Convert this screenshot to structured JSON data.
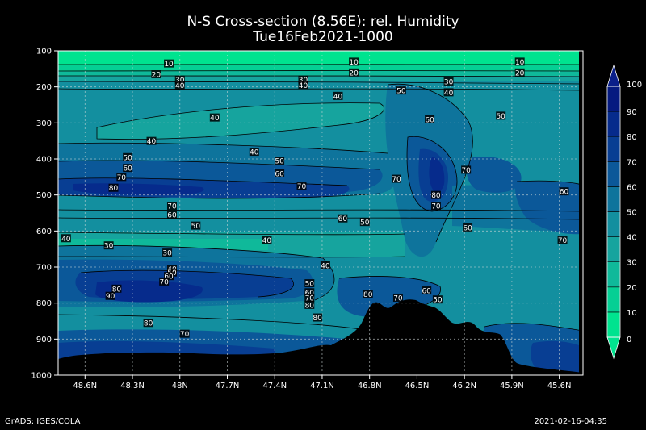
{
  "title": {
    "line1": "N-S Cross-section (8.56E): rel. Humidity",
    "line2": "Tue16Feb2021-1000"
  },
  "footer": {
    "left": "GrADS: IGES/COLA",
    "right": "2021-02-16-04:35"
  },
  "colors": {
    "c0_10": "#00e38f",
    "c10_20": "#05cf94",
    "c20_30": "#0fb99a",
    "c30_40": "#16a49e",
    "c40_50": "#138f9f",
    "c50_60": "#0e749c",
    "c60_70": "#0b5899",
    "c70_80": "#083e93",
    "c80_90": "#062b8c",
    "c90_100": "#051a80",
    "terrain": "#000000"
  },
  "chart_data": {
    "type": "heatmap",
    "title": "N-S Cross-section (8.56E): rel. Humidity",
    "subtitle": "Tue16Feb2021-1000",
    "x_ticks": [
      "48.6N",
      "48.3N",
      "48N",
      "47.7N",
      "47.4N",
      "47.1N",
      "46.8N",
      "46.5N",
      "46.2N",
      "45.9N",
      "45.6N"
    ],
    "y_ticks": [
      "100",
      "200",
      "300",
      "400",
      "500",
      "600",
      "700",
      "800",
      "900",
      "1000"
    ],
    "y_range": [
      100,
      1000
    ],
    "x_range_lat": [
      48.77,
      45.45
    ],
    "colorbar_levels": [
      "0",
      "10",
      "20",
      "30",
      "40",
      "50",
      "60",
      "70",
      "80",
      "90",
      "100"
    ],
    "grid": true,
    "legend_placement": "right",
    "contour_labels": [
      {
        "text": "10",
        "lat": 48.07,
        "p": 135
      },
      {
        "text": "10",
        "lat": 46.9,
        "p": 130
      },
      {
        "text": "10",
        "lat": 45.85,
        "p": 130
      },
      {
        "text": "20",
        "lat": 48.15,
        "p": 165
      },
      {
        "text": "20",
        "lat": 46.9,
        "p": 160
      },
      {
        "text": "20",
        "lat": 45.85,
        "p": 160
      },
      {
        "text": "30",
        "lat": 48.0,
        "p": 180
      },
      {
        "text": "30",
        "lat": 47.22,
        "p": 180
      },
      {
        "text": "30",
        "lat": 46.3,
        "p": 185
      },
      {
        "text": "30",
        "lat": 48.45,
        "p": 640
      },
      {
        "text": "30",
        "lat": 48.08,
        "p": 660
      },
      {
        "text": "40",
        "lat": 48.0,
        "p": 195
      },
      {
        "text": "40",
        "lat": 47.22,
        "p": 195
      },
      {
        "text": "40",
        "lat": 46.3,
        "p": 215
      },
      {
        "text": "40",
        "lat": 47.0,
        "p": 225
      },
      {
        "text": "40",
        "lat": 47.78,
        "p": 285
      },
      {
        "text": "40",
        "lat": 48.18,
        "p": 350
      },
      {
        "text": "40",
        "lat": 47.53,
        "p": 380
      },
      {
        "text": "40",
        "lat": 48.72,
        "p": 620
      },
      {
        "text": "40",
        "lat": 47.45,
        "p": 625
      },
      {
        "text": "40",
        "lat": 47.08,
        "p": 695
      },
      {
        "text": "40",
        "lat": 48.05,
        "p": 705
      },
      {
        "text": "50",
        "lat": 46.6,
        "p": 210
      },
      {
        "text": "50",
        "lat": 45.97,
        "p": 280
      },
      {
        "text": "50",
        "lat": 48.33,
        "p": 395
      },
      {
        "text": "50",
        "lat": 47.37,
        "p": 405
      },
      {
        "text": "50",
        "lat": 47.9,
        "p": 585
      },
      {
        "text": "50",
        "lat": 46.83,
        "p": 575
      },
      {
        "text": "50",
        "lat": 48.05,
        "p": 715
      },
      {
        "text": "50",
        "lat": 47.18,
        "p": 745
      },
      {
        "text": "50",
        "lat": 46.37,
        "p": 790
      },
      {
        "text": "60",
        "lat": 46.42,
        "p": 290
      },
      {
        "text": "60",
        "lat": 48.33,
        "p": 425
      },
      {
        "text": "60",
        "lat": 47.37,
        "p": 440
      },
      {
        "text": "60",
        "lat": 45.57,
        "p": 490
      },
      {
        "text": "60",
        "lat": 48.05,
        "p": 555
      },
      {
        "text": "60",
        "lat": 46.97,
        "p": 565
      },
      {
        "text": "60",
        "lat": 46.18,
        "p": 590
      },
      {
        "text": "60",
        "lat": 48.07,
        "p": 725
      },
      {
        "text": "60",
        "lat": 47.18,
        "p": 770
      },
      {
        "text": "60",
        "lat": 46.44,
        "p": 765
      },
      {
        "text": "70",
        "lat": 48.37,
        "p": 450
      },
      {
        "text": "70",
        "lat": 47.23,
        "p": 475
      },
      {
        "text": "70",
        "lat": 46.63,
        "p": 455
      },
      {
        "text": "70",
        "lat": 46.19,
        "p": 430
      },
      {
        "text": "70",
        "lat": 48.05,
        "p": 530
      },
      {
        "text": "70",
        "lat": 46.38,
        "p": 530
      },
      {
        "text": "70",
        "lat": 45.58,
        "p": 625
      },
      {
        "text": "70",
        "lat": 48.1,
        "p": 740
      },
      {
        "text": "70",
        "lat": 47.18,
        "p": 785
      },
      {
        "text": "70",
        "lat": 46.62,
        "p": 785
      },
      {
        "text": "70",
        "lat": 47.97,
        "p": 885
      },
      {
        "text": "80",
        "lat": 48.42,
        "p": 480
      },
      {
        "text": "80",
        "lat": 46.38,
        "p": 500
      },
      {
        "text": "80",
        "lat": 48.4,
        "p": 760
      },
      {
        "text": "80",
        "lat": 47.18,
        "p": 805
      },
      {
        "text": "80",
        "lat": 46.81,
        "p": 775
      },
      {
        "text": "80",
        "lat": 47.13,
        "p": 840
      },
      {
        "text": "80",
        "lat": 48.2,
        "p": 855
      },
      {
        "text": "90",
        "lat": 48.44,
        "p": 780
      }
    ]
  }
}
